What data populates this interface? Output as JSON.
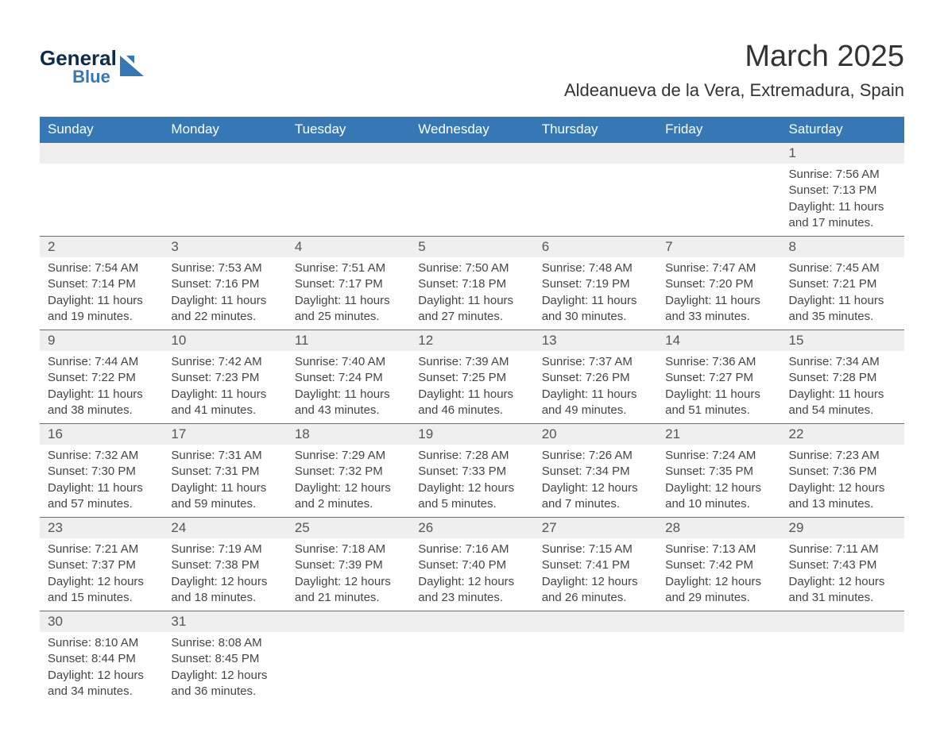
{
  "logo": {
    "brand_top": "General",
    "brand_bottom": "Blue",
    "text_color_top": "#0d2b4a",
    "text_color_bottom": "#3678b5",
    "shape_color": "#3678b5"
  },
  "title": "March 2025",
  "location": "Aldeanueva de la Vera, Extremadura, Spain",
  "colors": {
    "header_row_bg": "#3678b5",
    "header_row_text": "#ffffff",
    "daynum_bg": "#efefef",
    "row_divider": "#3678b5",
    "body_bg": "#ffffff",
    "body_text": "#444444"
  },
  "typography": {
    "title_fontsize": 38,
    "location_fontsize": 22,
    "header_fontsize": 17,
    "daynum_fontsize": 17,
    "body_fontsize": 15,
    "font_family": "Arial, Helvetica, sans-serif"
  },
  "layout": {
    "columns": 7,
    "week_start": "Sunday"
  },
  "day_headers": [
    "Sunday",
    "Monday",
    "Tuesday",
    "Wednesday",
    "Thursday",
    "Friday",
    "Saturday"
  ],
  "weeks": [
    [
      {
        "day": "",
        "sunrise": "",
        "sunset": "",
        "daylight": ""
      },
      {
        "day": "",
        "sunrise": "",
        "sunset": "",
        "daylight": ""
      },
      {
        "day": "",
        "sunrise": "",
        "sunset": "",
        "daylight": ""
      },
      {
        "day": "",
        "sunrise": "",
        "sunset": "",
        "daylight": ""
      },
      {
        "day": "",
        "sunrise": "",
        "sunset": "",
        "daylight": ""
      },
      {
        "day": "",
        "sunrise": "",
        "sunset": "",
        "daylight": ""
      },
      {
        "day": "1",
        "sunrise": "Sunrise: 7:56 AM",
        "sunset": "Sunset: 7:13 PM",
        "daylight": "Daylight: 11 hours and 17 minutes."
      }
    ],
    [
      {
        "day": "2",
        "sunrise": "Sunrise: 7:54 AM",
        "sunset": "Sunset: 7:14 PM",
        "daylight": "Daylight: 11 hours and 19 minutes."
      },
      {
        "day": "3",
        "sunrise": "Sunrise: 7:53 AM",
        "sunset": "Sunset: 7:16 PM",
        "daylight": "Daylight: 11 hours and 22 minutes."
      },
      {
        "day": "4",
        "sunrise": "Sunrise: 7:51 AM",
        "sunset": "Sunset: 7:17 PM",
        "daylight": "Daylight: 11 hours and 25 minutes."
      },
      {
        "day": "5",
        "sunrise": "Sunrise: 7:50 AM",
        "sunset": "Sunset: 7:18 PM",
        "daylight": "Daylight: 11 hours and 27 minutes."
      },
      {
        "day": "6",
        "sunrise": "Sunrise: 7:48 AM",
        "sunset": "Sunset: 7:19 PM",
        "daylight": "Daylight: 11 hours and 30 minutes."
      },
      {
        "day": "7",
        "sunrise": "Sunrise: 7:47 AM",
        "sunset": "Sunset: 7:20 PM",
        "daylight": "Daylight: 11 hours and 33 minutes."
      },
      {
        "day": "8",
        "sunrise": "Sunrise: 7:45 AM",
        "sunset": "Sunset: 7:21 PM",
        "daylight": "Daylight: 11 hours and 35 minutes."
      }
    ],
    [
      {
        "day": "9",
        "sunrise": "Sunrise: 7:44 AM",
        "sunset": "Sunset: 7:22 PM",
        "daylight": "Daylight: 11 hours and 38 minutes."
      },
      {
        "day": "10",
        "sunrise": "Sunrise: 7:42 AM",
        "sunset": "Sunset: 7:23 PM",
        "daylight": "Daylight: 11 hours and 41 minutes."
      },
      {
        "day": "11",
        "sunrise": "Sunrise: 7:40 AM",
        "sunset": "Sunset: 7:24 PM",
        "daylight": "Daylight: 11 hours and 43 minutes."
      },
      {
        "day": "12",
        "sunrise": "Sunrise: 7:39 AM",
        "sunset": "Sunset: 7:25 PM",
        "daylight": "Daylight: 11 hours and 46 minutes."
      },
      {
        "day": "13",
        "sunrise": "Sunrise: 7:37 AM",
        "sunset": "Sunset: 7:26 PM",
        "daylight": "Daylight: 11 hours and 49 minutes."
      },
      {
        "day": "14",
        "sunrise": "Sunrise: 7:36 AM",
        "sunset": "Sunset: 7:27 PM",
        "daylight": "Daylight: 11 hours and 51 minutes."
      },
      {
        "day": "15",
        "sunrise": "Sunrise: 7:34 AM",
        "sunset": "Sunset: 7:28 PM",
        "daylight": "Daylight: 11 hours and 54 minutes."
      }
    ],
    [
      {
        "day": "16",
        "sunrise": "Sunrise: 7:32 AM",
        "sunset": "Sunset: 7:30 PM",
        "daylight": "Daylight: 11 hours and 57 minutes."
      },
      {
        "day": "17",
        "sunrise": "Sunrise: 7:31 AM",
        "sunset": "Sunset: 7:31 PM",
        "daylight": "Daylight: 11 hours and 59 minutes."
      },
      {
        "day": "18",
        "sunrise": "Sunrise: 7:29 AM",
        "sunset": "Sunset: 7:32 PM",
        "daylight": "Daylight: 12 hours and 2 minutes."
      },
      {
        "day": "19",
        "sunrise": "Sunrise: 7:28 AM",
        "sunset": "Sunset: 7:33 PM",
        "daylight": "Daylight: 12 hours and 5 minutes."
      },
      {
        "day": "20",
        "sunrise": "Sunrise: 7:26 AM",
        "sunset": "Sunset: 7:34 PM",
        "daylight": "Daylight: 12 hours and 7 minutes."
      },
      {
        "day": "21",
        "sunrise": "Sunrise: 7:24 AM",
        "sunset": "Sunset: 7:35 PM",
        "daylight": "Daylight: 12 hours and 10 minutes."
      },
      {
        "day": "22",
        "sunrise": "Sunrise: 7:23 AM",
        "sunset": "Sunset: 7:36 PM",
        "daylight": "Daylight: 12 hours and 13 minutes."
      }
    ],
    [
      {
        "day": "23",
        "sunrise": "Sunrise: 7:21 AM",
        "sunset": "Sunset: 7:37 PM",
        "daylight": "Daylight: 12 hours and 15 minutes."
      },
      {
        "day": "24",
        "sunrise": "Sunrise: 7:19 AM",
        "sunset": "Sunset: 7:38 PM",
        "daylight": "Daylight: 12 hours and 18 minutes."
      },
      {
        "day": "25",
        "sunrise": "Sunrise: 7:18 AM",
        "sunset": "Sunset: 7:39 PM",
        "daylight": "Daylight: 12 hours and 21 minutes."
      },
      {
        "day": "26",
        "sunrise": "Sunrise: 7:16 AM",
        "sunset": "Sunset: 7:40 PM",
        "daylight": "Daylight: 12 hours and 23 minutes."
      },
      {
        "day": "27",
        "sunrise": "Sunrise: 7:15 AM",
        "sunset": "Sunset: 7:41 PM",
        "daylight": "Daylight: 12 hours and 26 minutes."
      },
      {
        "day": "28",
        "sunrise": "Sunrise: 7:13 AM",
        "sunset": "Sunset: 7:42 PM",
        "daylight": "Daylight: 12 hours and 29 minutes."
      },
      {
        "day": "29",
        "sunrise": "Sunrise: 7:11 AM",
        "sunset": "Sunset: 7:43 PM",
        "daylight": "Daylight: 12 hours and 31 minutes."
      }
    ],
    [
      {
        "day": "30",
        "sunrise": "Sunrise: 8:10 AM",
        "sunset": "Sunset: 8:44 PM",
        "daylight": "Daylight: 12 hours and 34 minutes."
      },
      {
        "day": "31",
        "sunrise": "Sunrise: 8:08 AM",
        "sunset": "Sunset: 8:45 PM",
        "daylight": "Daylight: 12 hours and 36 minutes."
      },
      {
        "day": "",
        "sunrise": "",
        "sunset": "",
        "daylight": ""
      },
      {
        "day": "",
        "sunrise": "",
        "sunset": "",
        "daylight": ""
      },
      {
        "day": "",
        "sunrise": "",
        "sunset": "",
        "daylight": ""
      },
      {
        "day": "",
        "sunrise": "",
        "sunset": "",
        "daylight": ""
      },
      {
        "day": "",
        "sunrise": "",
        "sunset": "",
        "daylight": ""
      }
    ]
  ]
}
